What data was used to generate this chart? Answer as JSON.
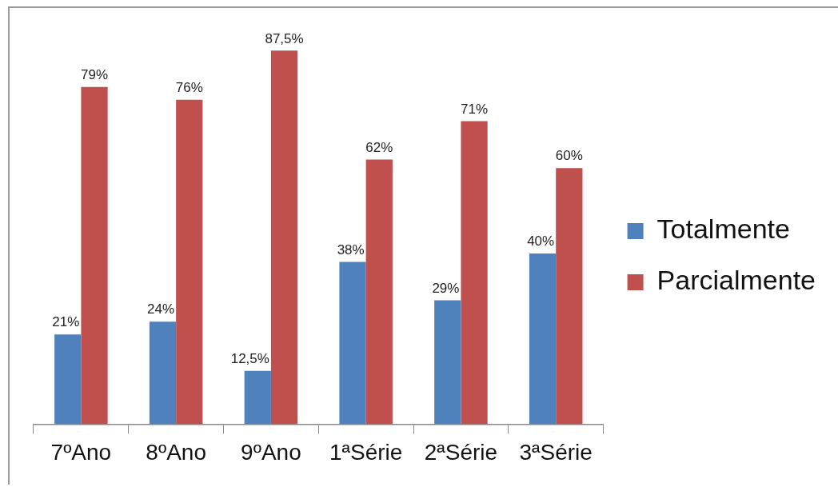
{
  "chart_data": {
    "type": "bar",
    "categories": [
      "7ºAno",
      "8ºAno",
      "9ºAno",
      "1ªSérie",
      "2ªSérie",
      "3ªSérie"
    ],
    "series": [
      {
        "name": "Totalmente",
        "color": "#4f81bd",
        "values": [
          21,
          24,
          12.5,
          38,
          29,
          40
        ],
        "value_labels": [
          "21%",
          "24%",
          "12,5%",
          "38%",
          "29%",
          "40%"
        ]
      },
      {
        "name": "Parcialmente",
        "color": "#c0504d",
        "values": [
          79,
          76,
          87.5,
          62,
          71,
          60
        ],
        "value_labels": [
          "79%",
          "76%",
          "87,5%",
          "62%",
          "71%",
          "60%"
        ]
      }
    ],
    "legend": "right",
    "tick_labels": "x"
  }
}
